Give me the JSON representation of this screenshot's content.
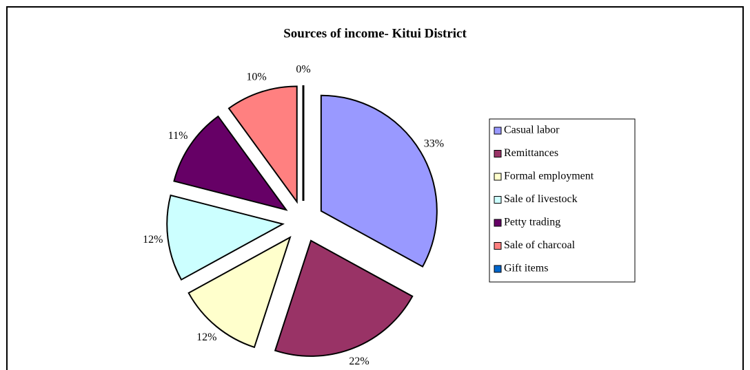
{
  "chart_data": {
    "type": "pie",
    "title": "Sources of income- Kitui District",
    "categories": [
      "Casual labor",
      "Remittances",
      "Formal employment",
      "Sale of livestock",
      "Petty trading",
      "Sale of charcoal",
      "Gift items"
    ],
    "values": [
      33,
      22,
      12,
      12,
      11,
      10,
      0
    ],
    "value_labels": [
      "33%",
      "22%",
      "12%",
      "12%",
      "11%",
      "10%",
      "0%"
    ],
    "colors": [
      "#9999ff",
      "#993366",
      "#ffffcc",
      "#ccffff",
      "#660066",
      "#ff8080",
      "#0066cc"
    ],
    "legend": "right"
  }
}
